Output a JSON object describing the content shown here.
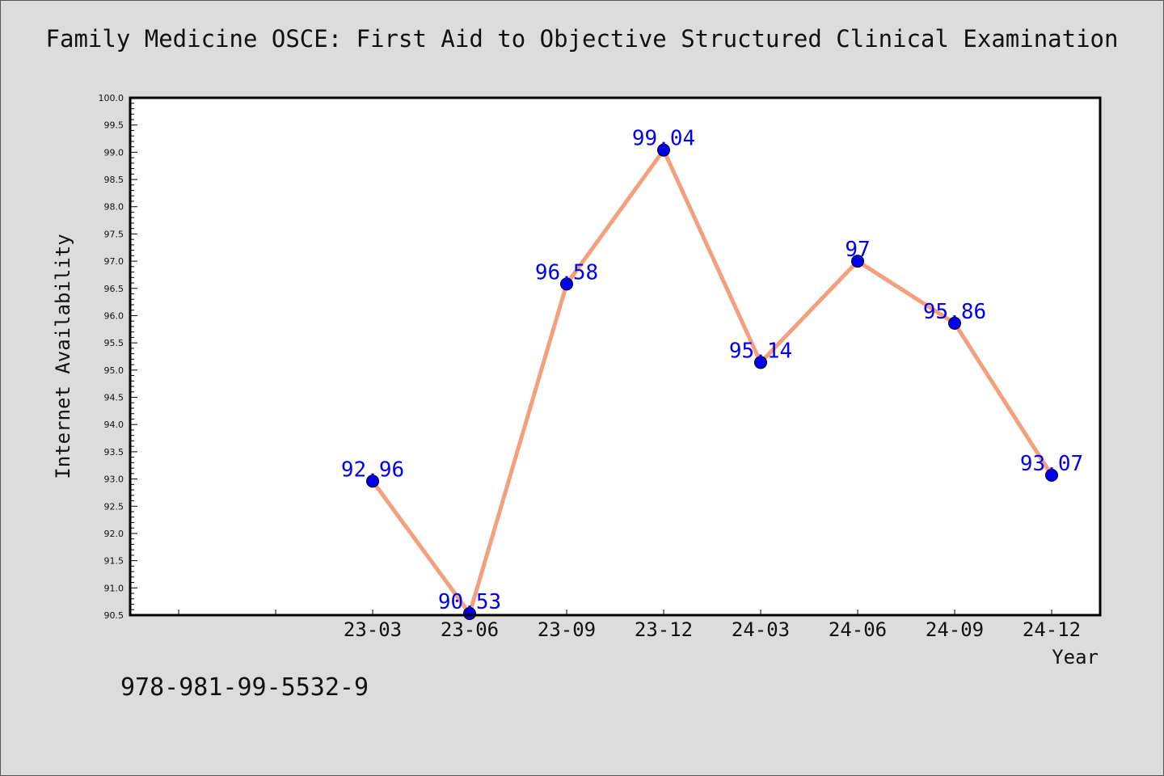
{
  "title": "Family Medicine OSCE: First Aid to Objective Structured Clinical Examination",
  "footer": "978-981-99-5532-9",
  "colors": {
    "line": "#f4a07e",
    "marker": "#0000ee",
    "label": "#0000ee",
    "background": "#dcdcdc",
    "plot_bg": "#ffffff"
  },
  "chart_data": {
    "type": "line",
    "xlabel": "Year",
    "ylabel": "Internet Availability",
    "categories": [
      "23-03",
      "23-06",
      "23-09",
      "23-12",
      "24-03",
      "24-06",
      "24-09",
      "24-12"
    ],
    "values": [
      92.96,
      90.53,
      96.58,
      99.04,
      95.14,
      97,
      95.86,
      93.07
    ],
    "data_labels": [
      "92.96",
      "90.53",
      "96.58",
      "99.04",
      "95.14",
      "97",
      "95.86",
      "93.07"
    ],
    "ylim": [
      90.5,
      100.0
    ],
    "yticks": [
      "90.5",
      "91.0",
      "91.5",
      "92.0",
      "92.5",
      "93.0",
      "93.5",
      "94.0",
      "94.5",
      "95.0",
      "95.5",
      "96.0",
      "96.5",
      "97.0",
      "97.5",
      "98.0",
      "98.5",
      "99.0",
      "99.5",
      "100.0"
    ],
    "grid": false,
    "legend": "none"
  }
}
